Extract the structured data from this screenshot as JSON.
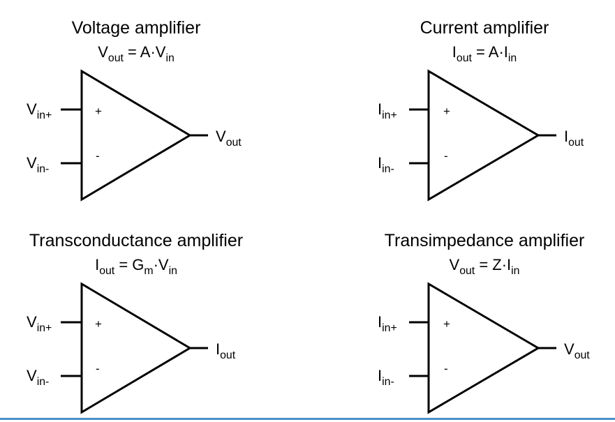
{
  "accent_color": "#4a90c8",
  "panels": [
    {
      "title": "Voltage amplifier",
      "formula": {
        "p1": "V",
        "p1_sub": "out",
        "p2": " = A·V",
        "p2_sub": "in",
        "p3": "",
        "p3_sub": ""
      },
      "in_plus": {
        "main": "V",
        "sub": "in+"
      },
      "in_minus": {
        "main": "V",
        "sub": "in-"
      },
      "out": {
        "main": "V",
        "sub": "out"
      },
      "plus_sign": "+",
      "minus_sign": "-"
    },
    {
      "title": "Current amplifier",
      "formula": {
        "p1": "I",
        "p1_sub": "out",
        "p2": " = A·I",
        "p2_sub": "in",
        "p3": "",
        "p3_sub": ""
      },
      "in_plus": {
        "main": "I",
        "sub": "in+"
      },
      "in_minus": {
        "main": "I",
        "sub": "in-"
      },
      "out": {
        "main": "I",
        "sub": "out"
      },
      "plus_sign": "+",
      "minus_sign": "-"
    },
    {
      "title": "Transconductance amplifier",
      "formula": {
        "p1": "I",
        "p1_sub": "out",
        "p2": " = G",
        "p2_sub": "m",
        "p3": "·V",
        "p3_sub": "in"
      },
      "in_plus": {
        "main": "V",
        "sub": "in+"
      },
      "in_minus": {
        "main": "V",
        "sub": "in-"
      },
      "out": {
        "main": "I",
        "sub": "out"
      },
      "plus_sign": "+",
      "minus_sign": "-"
    },
    {
      "title": "Transimpedance amplifier",
      "formula": {
        "p1": "V",
        "p1_sub": "out",
        "p2": " = Z·I",
        "p2_sub": "in",
        "p3": "",
        "p3_sub": ""
      },
      "in_plus": {
        "main": "I",
        "sub": "in+"
      },
      "in_minus": {
        "main": "I",
        "sub": "in-"
      },
      "out": {
        "main": "V",
        "sub": "out"
      },
      "plus_sign": "+",
      "minus_sign": "-"
    }
  ]
}
